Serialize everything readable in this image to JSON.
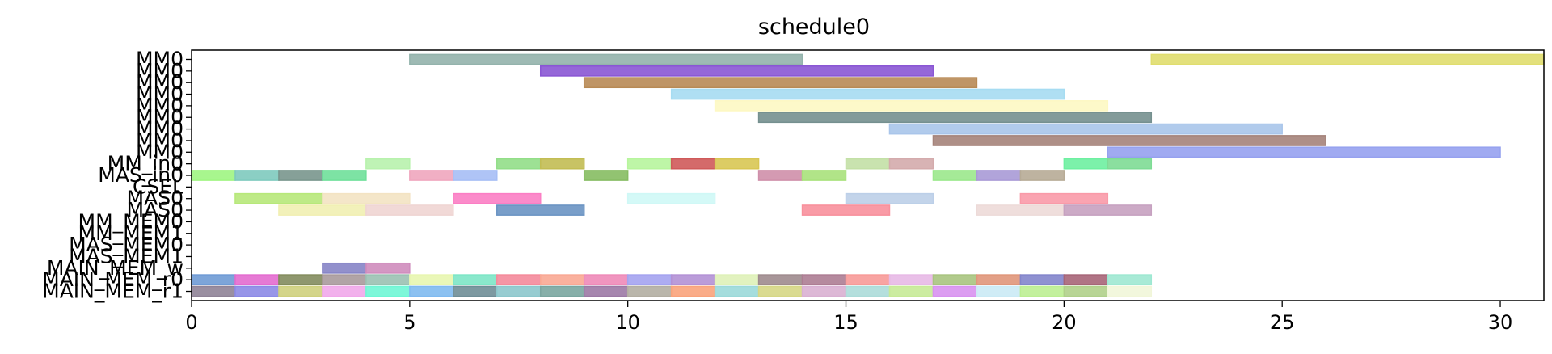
{
  "chart_data": {
    "type": "gantt",
    "title": "schedule0",
    "xlim": [
      0,
      31
    ],
    "x_ticks": [
      0,
      5,
      10,
      15,
      20,
      25,
      30
    ],
    "rows": [
      "MM0",
      "MM0",
      "MM0",
      "MM0",
      "MM0",
      "MM0",
      "MM0",
      "MM0",
      "MM0",
      "MM_in0",
      "MAS_in0",
      "CSEL",
      "MAS0",
      "MAS0",
      "MM_MEM0",
      "MM_MEM1",
      "MAS_MEM0",
      "MAS_MEM1",
      "MAIN_MEM_w",
      "MAIN_MEM_r0",
      "MAIN_MEM_r1"
    ],
    "bars": [
      {
        "row": 0,
        "start": 5,
        "end": 14,
        "color": "#93b3ac"
      },
      {
        "row": 0,
        "start": 22,
        "end": 31,
        "color": "#e0dd6e"
      },
      {
        "row": 1,
        "start": 8,
        "end": 17,
        "color": "#8a56d4"
      },
      {
        "row": 2,
        "start": 9,
        "end": 18,
        "color": "#b88a55"
      },
      {
        "row": 3,
        "start": 11,
        "end": 20,
        "color": "#a6dcf2"
      },
      {
        "row": 4,
        "start": 12,
        "end": 21,
        "color": "#fdf8c3"
      },
      {
        "row": 5,
        "start": 13,
        "end": 22,
        "color": "#75908f"
      },
      {
        "row": 6,
        "start": 16,
        "end": 25,
        "color": "#a9c5ea"
      },
      {
        "row": 7,
        "start": 17,
        "end": 26,
        "color": "#a5837a"
      },
      {
        "row": 8,
        "start": 21,
        "end": 30,
        "color": "#96a1ef"
      },
      {
        "row": 9,
        "start": 4,
        "end": 5,
        "color": "#b8f2ad"
      },
      {
        "row": 9,
        "start": 7,
        "end": 8,
        "color": "#92de88"
      },
      {
        "row": 9,
        "start": 8,
        "end": 9,
        "color": "#c2bd53"
      },
      {
        "row": 9,
        "start": 10,
        "end": 11,
        "color": "#b7f59d"
      },
      {
        "row": 9,
        "start": 11,
        "end": 12,
        "color": "#cf5a5a"
      },
      {
        "row": 9,
        "start": 12,
        "end": 13,
        "color": "#d8c653"
      },
      {
        "row": 9,
        "start": 15,
        "end": 16,
        "color": "#c3e0a6"
      },
      {
        "row": 9,
        "start": 16,
        "end": 17,
        "color": "#d4abac"
      },
      {
        "row": 9,
        "start": 20,
        "end": 21,
        "color": "#6ef0a1"
      },
      {
        "row": 9,
        "start": 21,
        "end": 22,
        "color": "#7edc95"
      },
      {
        "row": 10,
        "start": 0,
        "end": 1,
        "color": "#9ff582"
      },
      {
        "row": 10,
        "start": 1,
        "end": 2,
        "color": "#7ecabe"
      },
      {
        "row": 10,
        "start": 2,
        "end": 3,
        "color": "#79968d"
      },
      {
        "row": 10,
        "start": 3,
        "end": 4,
        "color": "#6fe09a"
      },
      {
        "row": 10,
        "start": 5,
        "end": 6,
        "color": "#f0a6be"
      },
      {
        "row": 10,
        "start": 6,
        "end": 7,
        "color": "#a6bef5"
      },
      {
        "row": 10,
        "start": 9,
        "end": 10,
        "color": "#86bc62"
      },
      {
        "row": 10,
        "start": 13,
        "end": 14,
        "color": "#cf8faa"
      },
      {
        "row": 10,
        "start": 14,
        "end": 15,
        "color": "#a8e17b"
      },
      {
        "row": 10,
        "start": 17,
        "end": 18,
        "color": "#9be88c"
      },
      {
        "row": 10,
        "start": 18,
        "end": 19,
        "color": "#a99ad6"
      },
      {
        "row": 10,
        "start": 19,
        "end": 20,
        "color": "#b7ab96"
      },
      {
        "row": 12,
        "start": 1,
        "end": 3,
        "color": "#b7e87a"
      },
      {
        "row": 12,
        "start": 3,
        "end": 5,
        "color": "#f3e3c3"
      },
      {
        "row": 12,
        "start": 6,
        "end": 8,
        "color": "#fb7ec4"
      },
      {
        "row": 12,
        "start": 10,
        "end": 12,
        "color": "#cff8f6"
      },
      {
        "row": 12,
        "start": 15,
        "end": 17,
        "color": "#bccfe8"
      },
      {
        "row": 12,
        "start": 19,
        "end": 21,
        "color": "#f99aa8"
      },
      {
        "row": 13,
        "start": 2,
        "end": 4,
        "color": "#f1efb2"
      },
      {
        "row": 13,
        "start": 4,
        "end": 6,
        "color": "#efd5d3"
      },
      {
        "row": 13,
        "start": 7,
        "end": 9,
        "color": "#6a93c3"
      },
      {
        "row": 13,
        "start": 14,
        "end": 16,
        "color": "#f8909c"
      },
      {
        "row": 13,
        "start": 18,
        "end": 20,
        "color": "#eddad8"
      },
      {
        "row": 13,
        "start": 20,
        "end": 22,
        "color": "#c6a1c0"
      },
      {
        "row": 18,
        "start": 3,
        "end": 4,
        "color": "#8684c6"
      },
      {
        "row": 18,
        "start": 4,
        "end": 5,
        "color": "#cf8cbd"
      },
      {
        "row": 19,
        "start": 0,
        "end": 1,
        "color": "#6f9bd5"
      },
      {
        "row": 19,
        "start": 1,
        "end": 2,
        "color": "#e36bcf"
      },
      {
        "row": 19,
        "start": 2,
        "end": 3,
        "color": "#838c5e"
      },
      {
        "row": 19,
        "start": 3,
        "end": 4,
        "color": "#a99a9c"
      },
      {
        "row": 19,
        "start": 4,
        "end": 5,
        "color": "#9bc1b2"
      },
      {
        "row": 19,
        "start": 5,
        "end": 6,
        "color": "#e8f6b0"
      },
      {
        "row": 19,
        "start": 6,
        "end": 7,
        "color": "#7de6c6"
      },
      {
        "row": 19,
        "start": 7,
        "end": 8,
        "color": "#f48a9b"
      },
      {
        "row": 19,
        "start": 8,
        "end": 9,
        "color": "#f9a894"
      },
      {
        "row": 19,
        "start": 9,
        "end": 10,
        "color": "#ee8ab8"
      },
      {
        "row": 19,
        "start": 10,
        "end": 11,
        "color": "#a4a3ef"
      },
      {
        "row": 19,
        "start": 11,
        "end": 12,
        "color": "#b391d5"
      },
      {
        "row": 19,
        "start": 12,
        "end": 13,
        "color": "#dff1b8"
      },
      {
        "row": 19,
        "start": 13,
        "end": 14,
        "color": "#9f8b8e"
      },
      {
        "row": 19,
        "start": 14,
        "end": 15,
        "color": "#ad7d93"
      },
      {
        "row": 19,
        "start": 15,
        "end": 16,
        "color": "#f79a98"
      },
      {
        "row": 19,
        "start": 16,
        "end": 17,
        "color": "#e7b9e6"
      },
      {
        "row": 19,
        "start": 17,
        "end": 18,
        "color": "#a8c47f"
      },
      {
        "row": 19,
        "start": 18,
        "end": 19,
        "color": "#e0967a"
      },
      {
        "row": 19,
        "start": 19,
        "end": 20,
        "color": "#8385cc"
      },
      {
        "row": 19,
        "start": 20,
        "end": 21,
        "color": "#a76578"
      },
      {
        "row": 19,
        "start": 21,
        "end": 22,
        "color": "#9ee8d2"
      },
      {
        "row": 20,
        "start": 0,
        "end": 1,
        "color": "#8f8397"
      },
      {
        "row": 20,
        "start": 1,
        "end": 2,
        "color": "#8c8ae6"
      },
      {
        "row": 20,
        "start": 2,
        "end": 3,
        "color": "#cfd07d"
      },
      {
        "row": 20,
        "start": 3,
        "end": 4,
        "color": "#f1a8ea"
      },
      {
        "row": 20,
        "start": 4,
        "end": 5,
        "color": "#6ff6d5"
      },
      {
        "row": 20,
        "start": 5,
        "end": 6,
        "color": "#80baf0"
      },
      {
        "row": 20,
        "start": 6,
        "end": 7,
        "color": "#6f8e97"
      },
      {
        "row": 20,
        "start": 7,
        "end": 8,
        "color": "#8cc7cc"
      },
      {
        "row": 20,
        "start": 8,
        "end": 9,
        "color": "#7aa6a0"
      },
      {
        "row": 20,
        "start": 9,
        "end": 10,
        "color": "#9c79a5"
      },
      {
        "row": 20,
        "start": 10,
        "end": 11,
        "color": "#b3aea2"
      },
      {
        "row": 20,
        "start": 11,
        "end": 12,
        "color": "#f9a37b"
      },
      {
        "row": 20,
        "start": 12,
        "end": 13,
        "color": "#9bd9d9"
      },
      {
        "row": 20,
        "start": 13,
        "end": 14,
        "color": "#d6d785"
      },
      {
        "row": 20,
        "start": 14,
        "end": 15,
        "color": "#d9b0d2"
      },
      {
        "row": 20,
        "start": 15,
        "end": 16,
        "color": "#acdcd9"
      },
      {
        "row": 20,
        "start": 16,
        "end": 17,
        "color": "#c7ea97"
      },
      {
        "row": 20,
        "start": 17,
        "end": 18,
        "color": "#d892f0"
      },
      {
        "row": 20,
        "start": 18,
        "end": 19,
        "color": "#cbeaf5"
      },
      {
        "row": 20,
        "start": 19,
        "end": 20,
        "color": "#bcee92"
      },
      {
        "row": 20,
        "start": 20,
        "end": 21,
        "color": "#b0d08a"
      },
      {
        "row": 20,
        "start": 21,
        "end": 22,
        "color": "#f1f6d9"
      }
    ]
  }
}
